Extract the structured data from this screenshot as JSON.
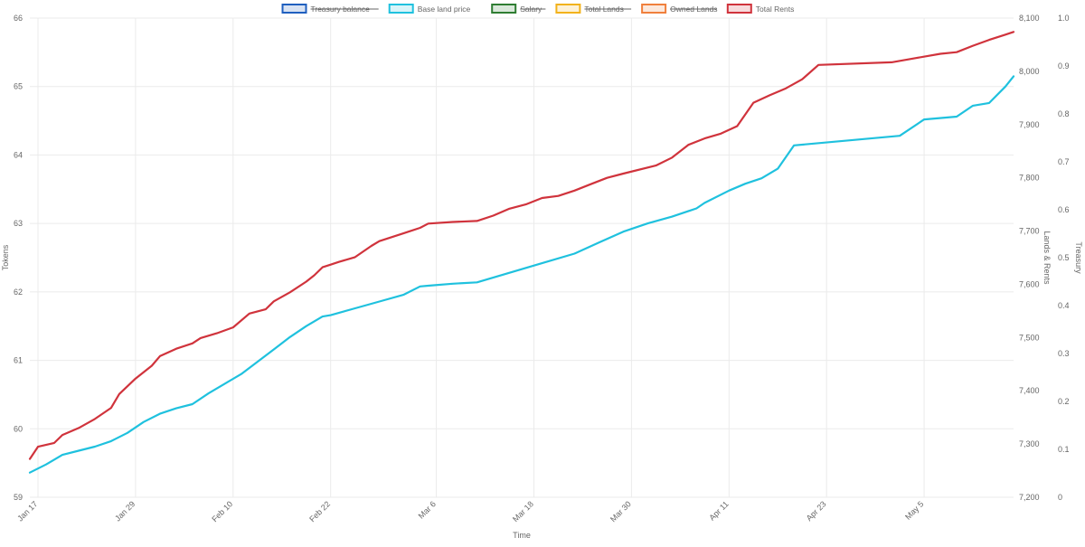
{
  "colors": {
    "treasury": "#1f5fbf",
    "base_land_price": "#1fc1de",
    "salary": "#2e7d32",
    "total_lands": "#f2b21b",
    "owned_lands": "#f07f3c",
    "total_rents": "#d0333c"
  },
  "chart_data": {
    "type": "line",
    "title": "",
    "xlabel": "Time",
    "ylabel_left": "Tokens",
    "ylabel_right_1": "Lands & Rents",
    "ylabel_right_2": "Treasury",
    "x_start": "Jan 16",
    "x_end": "May 16",
    "x_tick_labels": [
      "Jan 17",
      "Jan 29",
      "Feb 10",
      "Feb 22",
      "Mar 6",
      "Mar 18",
      "Mar 30",
      "Apr 11",
      "Apr 23",
      "May 5"
    ],
    "y_left": {
      "min": 59,
      "max": 66,
      "ticks": [
        "59",
        "60",
        "61",
        "62",
        "63",
        "64",
        "65",
        "66"
      ]
    },
    "y_right_1": {
      "min": 7200,
      "max": 8100,
      "ticks": [
        "7,200",
        "7,300",
        "7,400",
        "7,500",
        "7,600",
        "7,700",
        "7,800",
        "7,900",
        "8,000",
        "8,100"
      ]
    },
    "y_right_2": {
      "min": 0,
      "max": 1,
      "ticks": [
        "0",
        "0.1",
        "0.2",
        "0.3",
        "0.4",
        "0.5",
        "0.6",
        "0.7",
        "0.8",
        "0.9",
        "1.0"
      ]
    },
    "legend": {
      "position": "top",
      "items": [
        {
          "label": "Treasury balance",
          "hidden": true
        },
        {
          "label": "Base land price",
          "hidden": false
        },
        {
          "label": "Salary",
          "hidden": true
        },
        {
          "label": "Total Lands",
          "hidden": true
        },
        {
          "label": "Owned Lands",
          "hidden": true
        },
        {
          "label": "Total Rents",
          "hidden": false
        }
      ]
    },
    "series": [
      {
        "name": "Base land price",
        "axis": "left",
        "x": [
          "Jan 16",
          "Jan 18",
          "Jan 20",
          "Jan 22",
          "Jan 24",
          "Jan 26",
          "Jan 28",
          "Jan 30",
          "Feb 1",
          "Feb 3",
          "Feb 5",
          "Feb 7",
          "Feb 9",
          "Feb 11",
          "Feb 13",
          "Feb 15",
          "Feb 17",
          "Feb 19",
          "Feb 21",
          "Feb 22",
          "Feb 25",
          "Feb 28",
          "Mar 2",
          "Mar 4",
          "Mar 5",
          "Mar 8",
          "Mar 11",
          "Mar 15",
          "Mar 19",
          "Mar 23",
          "Mar 26",
          "Mar 29",
          "Apr 1",
          "Apr 4",
          "Apr 7",
          "Apr 8",
          "Apr 11",
          "Apr 13",
          "Apr 15",
          "Apr 17",
          "Apr 19",
          "May 2",
          "May 5",
          "May 9",
          "May 11",
          "May 13",
          "May 15",
          "May 16"
        ],
        "values": [
          59.36,
          59.48,
          59.62,
          59.68,
          59.74,
          59.82,
          59.94,
          60.1,
          60.22,
          60.3,
          60.36,
          60.52,
          60.66,
          60.8,
          60.98,
          61.16,
          61.34,
          61.5,
          61.64,
          61.66,
          61.76,
          61.86,
          61.96,
          62.08,
          62.09,
          62.12,
          62.14,
          62.28,
          62.42,
          62.56,
          62.72,
          62.88,
          63.0,
          63.1,
          63.22,
          63.3,
          63.48,
          63.58,
          63.66,
          63.8,
          64.14,
          64.28,
          64.52,
          64.56,
          64.72,
          64.76,
          65.0,
          65.15
        ]
      },
      {
        "name": "Total Rents",
        "axis": "right_1",
        "x": [
          "Jan 16",
          "Jan 17",
          "Jan 19",
          "Jan 20",
          "Jan 22",
          "Jan 24",
          "Jan 26",
          "Jan 27",
          "Jan 29",
          "Jan 31",
          "Feb 1",
          "Feb 3",
          "Feb 5",
          "Feb 6",
          "Feb 8",
          "Feb 10",
          "Feb 12",
          "Feb 14",
          "Feb 15",
          "Feb 17",
          "Feb 19",
          "Feb 20",
          "Feb 21",
          "Feb 22",
          "Feb 23",
          "Feb 25",
          "Feb 27",
          "Feb 28",
          "Mar 2",
          "Mar 4",
          "Mar 5",
          "Mar 8",
          "Mar 11",
          "Mar 13",
          "Mar 15",
          "Mar 17",
          "Mar 19",
          "Mar 21",
          "Mar 23",
          "Mar 25",
          "Mar 27",
          "Mar 29",
          "Apr 2",
          "Apr 4",
          "Apr 6",
          "Apr 8",
          "Apr 10",
          "Apr 12",
          "Apr 14",
          "Apr 16",
          "Apr 18",
          "Apr 20",
          "Apr 22",
          "May 1",
          "May 4",
          "May 7",
          "May 9",
          "May 11",
          "May 13",
          "May 15",
          "May 16"
        ],
        "values": [
          7272,
          7295,
          7302,
          7317,
          7330,
          7347,
          7368,
          7394,
          7423,
          7447,
          7465,
          7479,
          7489,
          7499,
          7508,
          7519,
          7545,
          7553,
          7568,
          7585,
          7605,
          7617,
          7632,
          7637,
          7642,
          7651,
          7672,
          7681,
          7696,
          7706,
          7714,
          7717,
          7719,
          7729,
          7742,
          7750,
          7762,
          7766,
          7776,
          7788,
          7800,
          7808,
          7823,
          7838,
          7862,
          7874,
          7883,
          7897,
          7941,
          7955,
          7968,
          7985,
          8012,
          8017,
          8025,
          8033,
          8036,
          8048,
          8059,
          8069,
          8074
        ]
      }
    ]
  }
}
